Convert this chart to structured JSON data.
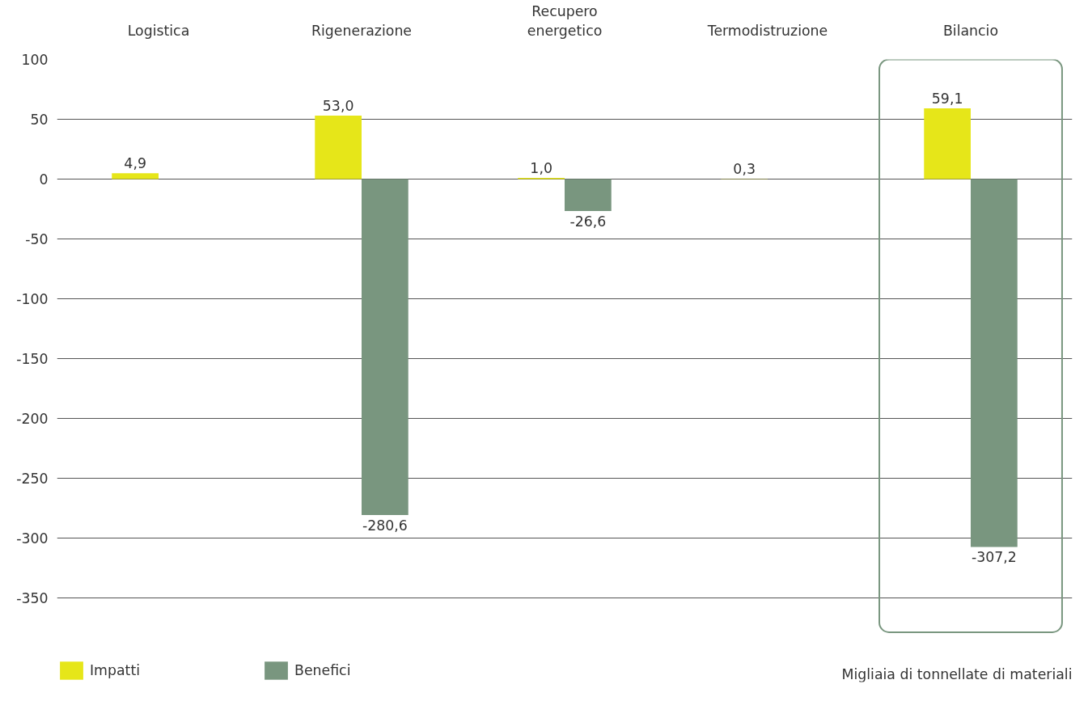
{
  "chart_data": {
    "type": "bar",
    "categories": [
      "Logistica",
      "Rigenerazione",
      "Recupero energetico",
      "Termodistruzione",
      "Bilancio"
    ],
    "series": [
      {
        "name": "Impatti",
        "color": "#e6e619",
        "values": [
          4.9,
          53.0,
          1.0,
          0.3,
          59.1
        ],
        "value_labels": [
          "4,9",
          "53,0",
          "1,0",
          "0,3",
          "59,1"
        ]
      },
      {
        "name": "Benefici",
        "color": "#79967f",
        "values": [
          null,
          -280.6,
          -26.6,
          null,
          -307.2
        ],
        "value_labels": [
          null,
          "-280,6",
          "-26,6",
          null,
          "-307,2"
        ]
      }
    ],
    "ylim": [
      -420,
      100
    ],
    "yticks": [
      100,
      50,
      0,
      -50,
      -100,
      -150,
      -200,
      -250,
      -300,
      -350
    ],
    "grid": "y",
    "legend": "bottom left",
    "annotations": [
      "Migliaia di tonnellate di materiali"
    ]
  }
}
